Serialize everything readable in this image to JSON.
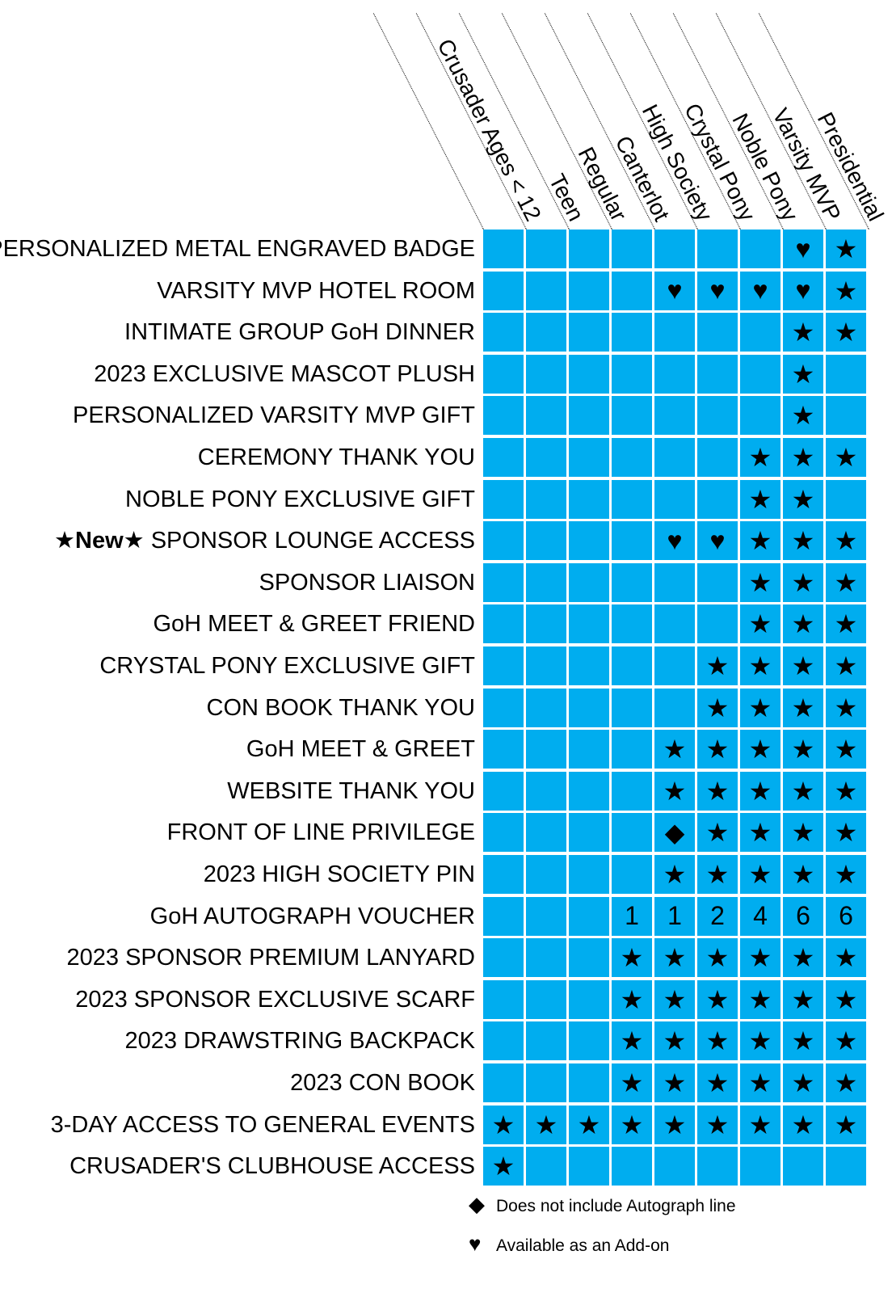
{
  "columns": [
    "Crusader Ages < 12",
    "Teen",
    "Regular",
    "Canterlot",
    "High Society",
    "Crystal Pony",
    "Noble Pony",
    "Varsity MVP",
    "Presidential"
  ],
  "rows": [
    {
      "prefix": "",
      "label": "PERSONALIZED METAL ENGRAVED BADGE",
      "cells": [
        "",
        "",
        "",
        "",
        "",
        "",
        "",
        "heart",
        "star"
      ]
    },
    {
      "prefix": "",
      "label": "VARSITY MVP HOTEL ROOM",
      "cells": [
        "",
        "",
        "",
        "",
        "heart",
        "heart",
        "heart",
        "heart",
        "star"
      ]
    },
    {
      "prefix": "",
      "label": "INTIMATE GROUP GoH DINNER",
      "cells": [
        "",
        "",
        "",
        "",
        "",
        "",
        "",
        "star",
        "star"
      ]
    },
    {
      "prefix": "",
      "label": "2023 EXCLUSIVE MASCOT PLUSH",
      "cells": [
        "",
        "",
        "",
        "",
        "",
        "",
        "",
        "star",
        ""
      ]
    },
    {
      "prefix": "",
      "label": "PERSONALIZED VARSITY MVP GIFT",
      "cells": [
        "",
        "",
        "",
        "",
        "",
        "",
        "",
        "star",
        ""
      ]
    },
    {
      "prefix": "",
      "label": "CEREMONY THANK YOU",
      "cells": [
        "",
        "",
        "",
        "",
        "",
        "",
        "star",
        "star",
        "star"
      ]
    },
    {
      "prefix": "",
      "label": "NOBLE PONY EXCLUSIVE GIFT",
      "cells": [
        "",
        "",
        "",
        "",
        "",
        "",
        "star",
        "star",
        ""
      ]
    },
    {
      "prefix": "★New★",
      "label": "SPONSOR LOUNGE ACCESS",
      "cells": [
        "",
        "",
        "",
        "",
        "heart",
        "heart",
        "star",
        "star",
        "star"
      ]
    },
    {
      "prefix": "",
      "label": "SPONSOR LIAISON",
      "cells": [
        "",
        "",
        "",
        "",
        "",
        "",
        "star",
        "star",
        "star"
      ]
    },
    {
      "prefix": "",
      "label": "GoH MEET & GREET FRIEND",
      "cells": [
        "",
        "",
        "",
        "",
        "",
        "",
        "star",
        "star",
        "star"
      ]
    },
    {
      "prefix": "",
      "label": "CRYSTAL PONY EXCLUSIVE GIFT",
      "cells": [
        "",
        "",
        "",
        "",
        "",
        "star",
        "star",
        "star",
        "star"
      ]
    },
    {
      "prefix": "",
      "label": "CON BOOK THANK YOU",
      "cells": [
        "",
        "",
        "",
        "",
        "",
        "star",
        "star",
        "star",
        "star"
      ]
    },
    {
      "prefix": "",
      "label": "GoH MEET & GREET",
      "cells": [
        "",
        "",
        "",
        "",
        "star",
        "star",
        "star",
        "star",
        "star"
      ]
    },
    {
      "prefix": "",
      "label": "WEBSITE THANK YOU",
      "cells": [
        "",
        "",
        "",
        "",
        "star",
        "star",
        "star",
        "star",
        "star"
      ]
    },
    {
      "prefix": "",
      "label": "FRONT OF LINE PRIVILEGE",
      "cells": [
        "",
        "",
        "",
        "",
        "diamond",
        "star",
        "star",
        "star",
        "star"
      ]
    },
    {
      "prefix": "",
      "label": "2023 HIGH SOCIETY PIN",
      "cells": [
        "",
        "",
        "",
        "",
        "star",
        "star",
        "star",
        "star",
        "star"
      ]
    },
    {
      "prefix": "",
      "label": "GoH AUTOGRAPH VOUCHER",
      "cells": [
        "",
        "",
        "",
        "1",
        "1",
        "2",
        "4",
        "6",
        "6"
      ]
    },
    {
      "prefix": "",
      "label": "2023 SPONSOR PREMIUM LANYARD",
      "cells": [
        "",
        "",
        "",
        "star",
        "star",
        "star",
        "star",
        "star",
        "star"
      ]
    },
    {
      "prefix": "",
      "label": "2023 SPONSOR EXCLUSIVE SCARF",
      "cells": [
        "",
        "",
        "",
        "star",
        "star",
        "star",
        "star",
        "star",
        "star"
      ]
    },
    {
      "prefix": "",
      "label": "2023 DRAWSTRING BACKPACK",
      "cells": [
        "",
        "",
        "",
        "star",
        "star",
        "star",
        "star",
        "star",
        "star"
      ]
    },
    {
      "prefix": "",
      "label": "2023 CON BOOK",
      "cells": [
        "",
        "",
        "",
        "star",
        "star",
        "star",
        "star",
        "star",
        "star"
      ]
    },
    {
      "prefix": "",
      "label": "3-DAY ACCESS TO GENERAL EVENTS",
      "cells": [
        "star",
        "star",
        "star",
        "star",
        "star",
        "star",
        "star",
        "star",
        "star"
      ]
    },
    {
      "prefix": "",
      "label": "CRUSADER'S CLUBHOUSE ACCESS",
      "cells": [
        "star",
        "",
        "",
        "",
        "",
        "",
        "",
        "",
        ""
      ]
    }
  ],
  "symbols": {
    "star": "★",
    "heart": "♥",
    "diamond": "◆"
  },
  "legend": [
    {
      "symbol": "◆",
      "text": "Does not include Autograph line"
    },
    {
      "symbol": "♥",
      "text": "Available as an Add-on"
    }
  ],
  "colors": {
    "cell": "#00adef",
    "background": "#ffffff",
    "text": "#000000"
  }
}
